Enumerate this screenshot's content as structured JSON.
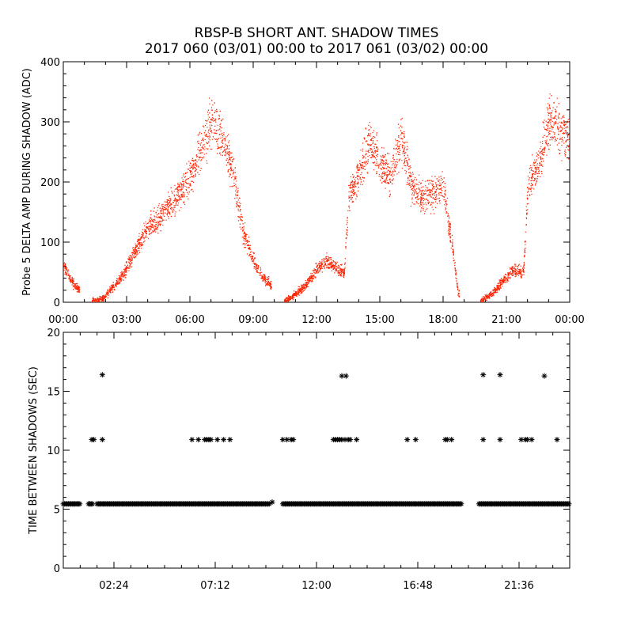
{
  "page": {
    "title_line1": "RBSP-B SHORT ANT. SHADOW TIMES",
    "title_line2": "2017 060 (03/01) 00:00 to 2017 061 (03/02) 00:00"
  },
  "colors": {
    "series_red": "#ff2200",
    "axis": "#000000",
    "marker": "#000000"
  },
  "chart_data": [
    {
      "type": "scatter",
      "ylabel": "Probe 5 DELTA AMP DURING SHADOW (ADC)",
      "xlabel": "",
      "xlim": [
        0,
        24
      ],
      "ylim": [
        0,
        400
      ],
      "x_unit": "hours",
      "yticks": [
        0,
        100,
        200,
        300,
        400
      ],
      "xtick_labels": [
        "00:00",
        "03:00",
        "06:00",
        "09:00",
        "12:00",
        "15:00",
        "18:00",
        "21:00",
        "00:00"
      ],
      "marker": "dot",
      "color": "#ff2200",
      "trend": [
        [
          0.0,
          60
        ],
        [
          0.5,
          30
        ],
        [
          0.7,
          22
        ],
        [
          1.4,
          3
        ],
        [
          1.9,
          8
        ],
        [
          2.3,
          25
        ],
        [
          2.8,
          45
        ],
        [
          3.3,
          80
        ],
        [
          3.9,
          120
        ],
        [
          4.5,
          140
        ],
        [
          5.0,
          160
        ],
        [
          5.5,
          185
        ],
        [
          6.0,
          210
        ],
        [
          6.5,
          250
        ],
        [
          7.0,
          300
        ],
        [
          7.5,
          280
        ],
        [
          8.0,
          220
        ],
        [
          8.5,
          120
        ],
        [
          9.0,
          70
        ],
        [
          9.5,
          40
        ],
        [
          9.8,
          30
        ],
        [
          10.5,
          3
        ],
        [
          11.0,
          15
        ],
        [
          11.5,
          30
        ],
        [
          12.0,
          55
        ],
        [
          12.5,
          70
        ],
        [
          13.0,
          55
        ],
        [
          13.3,
          50
        ],
        [
          13.5,
          170
        ],
        [
          14.0,
          215
        ],
        [
          14.5,
          270
        ],
        [
          15.0,
          230
        ],
        [
          15.5,
          210
        ],
        [
          16.0,
          280
        ],
        [
          16.5,
          190
        ],
        [
          17.0,
          175
        ],
        [
          17.5,
          185
        ],
        [
          18.0,
          190
        ],
        [
          18.4,
          100
        ],
        [
          18.7,
          15
        ],
        [
          19.8,
          3
        ],
        [
          20.3,
          15
        ],
        [
          20.8,
          35
        ],
        [
          21.3,
          55
        ],
        [
          21.8,
          50
        ],
        [
          22.0,
          195
        ],
        [
          22.5,
          230
        ],
        [
          23.0,
          300
        ],
        [
          23.5,
          290
        ],
        [
          24.0,
          270
        ]
      ]
    },
    {
      "type": "scatter",
      "ylabel": "TIME BETWEEN SHADOWS (SEC)",
      "xlabel": "",
      "xlim": [
        0,
        24
      ],
      "ylim": [
        0,
        20
      ],
      "x_unit": "hours",
      "yticks": [
        0,
        5,
        10,
        15,
        20
      ],
      "xtick_labels": [
        "02:24",
        "07:12",
        "12:00",
        "16:48",
        "21:36"
      ],
      "xtick_values": [
        2.4,
        7.2,
        12.0,
        16.8,
        21.6
      ],
      "marker": "asterisk",
      "color": "#000000",
      "baseline_value": 5.45,
      "baseline_segments": [
        [
          0.0,
          0.8
        ],
        [
          1.2,
          1.4
        ],
        [
          1.6,
          9.8
        ],
        [
          10.4,
          18.9
        ],
        [
          19.7,
          24.0
        ]
      ],
      "points": [
        [
          1.35,
          10.9
        ],
        [
          1.45,
          10.9
        ],
        [
          1.85,
          10.9
        ],
        [
          1.85,
          16.4
        ],
        [
          6.1,
          10.9
        ],
        [
          6.4,
          10.9
        ],
        [
          6.7,
          10.9
        ],
        [
          6.8,
          10.9
        ],
        [
          6.9,
          10.9
        ],
        [
          7.0,
          10.9
        ],
        [
          7.3,
          10.9
        ],
        [
          7.6,
          10.9
        ],
        [
          7.9,
          10.9
        ],
        [
          9.9,
          5.6
        ],
        [
          10.4,
          10.9
        ],
        [
          10.6,
          10.9
        ],
        [
          10.8,
          10.9
        ],
        [
          10.9,
          10.9
        ],
        [
          12.8,
          10.9
        ],
        [
          12.9,
          10.9
        ],
        [
          13.0,
          10.9
        ],
        [
          13.1,
          10.9
        ],
        [
          13.2,
          10.9
        ],
        [
          13.35,
          10.9
        ],
        [
          13.5,
          10.9
        ],
        [
          13.6,
          10.9
        ],
        [
          13.9,
          10.9
        ],
        [
          13.2,
          16.3
        ],
        [
          13.4,
          16.3
        ],
        [
          16.3,
          10.9
        ],
        [
          16.7,
          10.9
        ],
        [
          18.1,
          10.9
        ],
        [
          18.2,
          10.9
        ],
        [
          18.4,
          10.9
        ],
        [
          19.9,
          16.4
        ],
        [
          19.9,
          10.9
        ],
        [
          20.7,
          16.4
        ],
        [
          20.7,
          10.9
        ],
        [
          21.7,
          10.9
        ],
        [
          21.9,
          10.9
        ],
        [
          22.0,
          10.9
        ],
        [
          22.2,
          10.9
        ],
        [
          22.8,
          16.3
        ],
        [
          23.4,
          10.9
        ]
      ]
    }
  ]
}
